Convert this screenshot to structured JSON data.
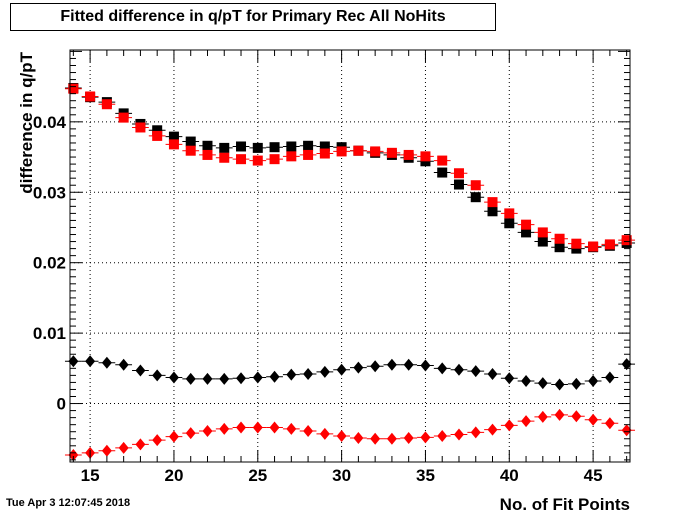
{
  "header": {
    "title": "Fitted difference in q/pT  for Primary Rec All NoHits",
    "timestamp": "Tue Apr  3 12:07:45 2018"
  },
  "chart_data": {
    "type": "scatter",
    "title": "Fitted difference in q/pT  for Primary Rec All NoHits",
    "xlabel": "No. of Fit Points",
    "ylabel": "difference in q/pT",
    "xlim": [
      13.8,
      47.2
    ],
    "ylim": [
      -0.0083,
      0.0502
    ],
    "grid": true,
    "x_ticks": [
      15,
      20,
      25,
      30,
      35,
      40,
      45
    ],
    "x_tick_labels": [
      "15",
      "20",
      "25",
      "30",
      "35",
      "40",
      "45"
    ],
    "y_ticks": [
      0,
      0.01,
      0.02,
      0.03,
      0.04
    ],
    "y_tick_labels": [
      "0",
      "0.01",
      "0.02",
      "0.03",
      "0.04"
    ],
    "x": [
      14,
      15,
      16,
      17,
      18,
      19,
      20,
      21,
      22,
      23,
      24,
      25,
      26,
      27,
      28,
      29,
      30,
      31,
      32,
      33,
      34,
      35,
      36,
      37,
      38,
      39,
      40,
      41,
      42,
      43,
      44,
      45,
      46,
      47
    ],
    "series": [
      {
        "marker": "square",
        "color": "#000000",
        "values": [
          0.0448,
          0.0435,
          0.0428,
          0.0412,
          0.0397,
          0.0388,
          0.0379,
          0.0372,
          0.0366,
          0.0363,
          0.0365,
          0.0363,
          0.0364,
          0.0365,
          0.0366,
          0.0365,
          0.0364,
          0.0359,
          0.0356,
          0.0353,
          0.0349,
          0.0344,
          0.0328,
          0.0311,
          0.0293,
          0.0273,
          0.0256,
          0.0243,
          0.023,
          0.0222,
          0.022,
          0.0222,
          0.0224,
          0.0228
        ]
      },
      {
        "marker": "square",
        "color": "#ff0000",
        "values": [
          0.0447,
          0.0436,
          0.0425,
          0.0406,
          0.0392,
          0.038,
          0.0368,
          0.0359,
          0.0353,
          0.0349,
          0.0347,
          0.0345,
          0.0347,
          0.0351,
          0.0353,
          0.0355,
          0.0358,
          0.0359,
          0.0358,
          0.0356,
          0.0353,
          0.0351,
          0.0345,
          0.0327,
          0.031,
          0.0286,
          0.027,
          0.0254,
          0.0243,
          0.0234,
          0.0227,
          0.0223,
          0.0226,
          0.0232
        ]
      },
      {
        "marker": "diamond",
        "color": "#000000",
        "values": [
          0.006,
          0.006,
          0.0058,
          0.0055,
          0.0047,
          0.004,
          0.0037,
          0.0035,
          0.0035,
          0.0035,
          0.0036,
          0.0037,
          0.0038,
          0.0041,
          0.0042,
          0.0045,
          0.0048,
          0.0051,
          0.0053,
          0.0055,
          0.0055,
          0.0054,
          0.005,
          0.0048,
          0.0046,
          0.0042,
          0.0036,
          0.0032,
          0.0029,
          0.0027,
          0.0028,
          0.0032,
          0.0037,
          0.0056
        ]
      },
      {
        "marker": "diamond",
        "color": "#ff0000",
        "values": [
          -0.0073,
          -0.007,
          -0.0067,
          -0.0063,
          -0.0058,
          -0.0052,
          -0.0047,
          -0.0042,
          -0.0039,
          -0.0036,
          -0.0034,
          -0.0034,
          -0.0034,
          -0.0036,
          -0.0039,
          -0.0043,
          -0.0046,
          -0.0049,
          -0.005,
          -0.005,
          -0.0049,
          -0.0048,
          -0.0046,
          -0.0044,
          -0.0041,
          -0.0037,
          -0.0031,
          -0.0025,
          -0.0019,
          -0.0016,
          -0.0018,
          -0.0023,
          -0.0028,
          -0.0038
        ]
      }
    ]
  }
}
